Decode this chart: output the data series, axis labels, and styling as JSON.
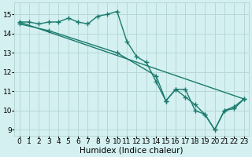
{
  "line1_x": [
    0,
    1,
    2,
    3,
    4,
    5,
    6,
    7,
    8,
    9,
    10,
    11,
    12,
    13,
    14,
    15,
    16,
    17,
    18,
    19,
    20,
    21,
    22,
    23
  ],
  "line1_y": [
    14.6,
    14.6,
    14.5,
    14.6,
    14.6,
    14.8,
    14.6,
    14.5,
    14.9,
    15.0,
    15.15,
    13.6,
    12.8,
    12.5,
    11.5,
    10.5,
    11.1,
    11.1,
    10.0,
    9.8,
    9.0,
    10.0,
    10.1,
    10.6
  ],
  "line2_x": [
    0,
    23
  ],
  "line2_y": [
    14.6,
    10.6
  ],
  "line3_x": [
    0,
    3,
    10,
    14,
    15,
    16,
    17,
    18,
    19,
    20,
    21,
    22,
    23
  ],
  "line3_y": [
    14.5,
    14.15,
    13.0,
    11.8,
    10.5,
    11.1,
    10.7,
    10.3,
    9.8,
    9.0,
    10.0,
    10.2,
    10.6
  ],
  "line_color": "#1a7a6e",
  "bg_color": "#d4f0f0",
  "grid_color": "#b8d8d8",
  "xlabel": "Humidex (Indice chaleur)",
  "xlim": [
    -0.5,
    23.5
  ],
  "ylim": [
    8.7,
    15.6
  ],
  "yticks": [
    9,
    10,
    11,
    12,
    13,
    14,
    15
  ],
  "xticks": [
    0,
    1,
    2,
    3,
    4,
    5,
    6,
    7,
    8,
    9,
    10,
    11,
    12,
    13,
    14,
    15,
    16,
    17,
    18,
    19,
    20,
    21,
    22,
    23
  ],
  "marker": "+",
  "markersize": 4,
  "linewidth": 1.0,
  "xlabel_fontsize": 7.5,
  "tick_fontsize": 6.5
}
